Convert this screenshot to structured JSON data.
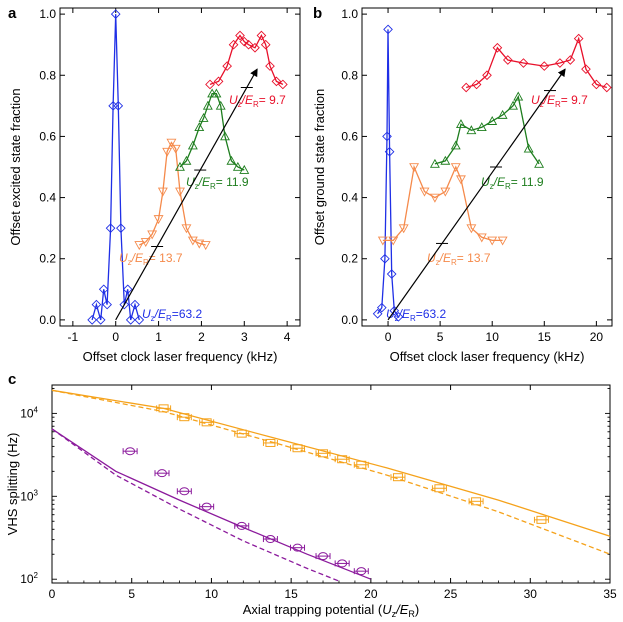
{
  "chart_data": [
    {
      "panel": "a",
      "type": "line",
      "ylabel": "Offset excited state fraction",
      "xlabel": "Offset clock laser frequency (kHz)",
      "xlim": [
        -1.3,
        4.3
      ],
      "ylim": [
        -0.02,
        1.02
      ],
      "xticks": [
        "-1",
        "0",
        "1",
        "2",
        "3",
        "4"
      ],
      "yticks": [
        "0.0",
        "0.2",
        "0.4",
        "0.6",
        "0.8",
        "1.0"
      ],
      "arrow": {
        "from": [
          0.0,
          0.0
        ],
        "to": [
          3.3,
          0.82
        ]
      },
      "series": [
        {
          "name": "U_z/E_R=63.2",
          "value": "63.2",
          "color": "#1f2fe6",
          "marker": "diamond",
          "offset": 0.0,
          "curve": {
            "x": [
              -0.55,
              -0.45,
              -0.35,
              -0.28,
              -0.2,
              -0.12,
              -0.06,
              0.0,
              0.06,
              0.12,
              0.2,
              0.28,
              0.35,
              0.45,
              0.55
            ],
            "y": [
              0.0,
              0.05,
              0.0,
              0.1,
              0.05,
              0.3,
              0.7,
              1.0,
              0.7,
              0.3,
              0.05,
              0.1,
              0.0,
              0.05,
              0.0
            ]
          }
        },
        {
          "name": "U_z/E_R=13.7",
          "value": "13.7",
          "color": "#f58a4b",
          "marker": "triangle-down",
          "offset": 0.24,
          "curve": {
            "x": [
              0.55,
              0.7,
              0.85,
              1.0,
              1.1,
              1.2,
              1.3,
              1.4,
              1.5,
              1.65,
              1.8,
              1.95,
              2.1
            ],
            "y": [
              0.245,
              0.255,
              0.28,
              0.33,
              0.42,
              0.55,
              0.58,
              0.56,
              0.42,
              0.3,
              0.26,
              0.25,
              0.245
            ]
          }
        },
        {
          "name": "U_z/E_R=11.9",
          "value": "11.9",
          "color": "#1d7d1d",
          "marker": "triangle-up",
          "offset": 0.49,
          "curve": {
            "x": [
              1.5,
              1.65,
              1.8,
              1.95,
              2.05,
              2.15,
              2.25,
              2.35,
              2.45,
              2.55,
              2.7,
              2.85,
              3.0
            ],
            "y": [
              0.5,
              0.52,
              0.57,
              0.63,
              0.66,
              0.7,
              0.74,
              0.74,
              0.7,
              0.6,
              0.52,
              0.5,
              0.49
            ]
          }
        },
        {
          "name": "U_z/E_R=9.7",
          "value": "9.7",
          "color": "#e8102a",
          "marker": "diamond",
          "offset": 0.76,
          "curve": {
            "x": [
              2.2,
              2.4,
              2.6,
              2.75,
              2.9,
              3.0,
              3.1,
              3.25,
              3.4,
              3.5,
              3.6,
              3.75,
              3.9
            ],
            "y": [
              0.77,
              0.78,
              0.83,
              0.9,
              0.93,
              0.91,
              0.9,
              0.89,
              0.93,
              0.9,
              0.83,
              0.78,
              0.77
            ]
          }
        }
      ]
    },
    {
      "panel": "b",
      "type": "line",
      "ylabel": "Offset ground state fraction",
      "xlabel": "Offset clock laser frequency (kHz)",
      "xlim": [
        -2.5,
        21.5
      ],
      "ylim": [
        -0.02,
        1.02
      ],
      "xticks": [
        "0",
        "5",
        "10",
        "15",
        "20"
      ],
      "yticks": [
        "0.0",
        "0.2",
        "0.4",
        "0.6",
        "0.8",
        "1.0"
      ],
      "arrow": {
        "from": [
          0.0,
          0.0
        ],
        "to": [
          17.0,
          0.82
        ]
      },
      "series": [
        {
          "name": "U_z/E_R=63.2",
          "value": "63.2",
          "color": "#1f2fe6",
          "marker": "diamond",
          "offset": 0.0,
          "curve": {
            "x": [
              -1.0,
              -0.6,
              -0.3,
              -0.1,
              0.0,
              0.15,
              0.35,
              0.6,
              1.0
            ],
            "y": [
              0.02,
              0.04,
              0.2,
              0.6,
              0.95,
              0.55,
              0.15,
              0.03,
              0.01
            ]
          }
        },
        {
          "name": "U_z/E_R=13.7",
          "value": "13.7",
          "color": "#f58a4b",
          "marker": "triangle-down",
          "offset": 0.25,
          "curve": {
            "x": [
              -0.5,
              0.5,
              1.5,
              2.5,
              3.5,
              4.5,
              5.5,
              6.5,
              7.0,
              8.0,
              9.0,
              10.0,
              11.0
            ],
            "y": [
              0.26,
              0.26,
              0.3,
              0.5,
              0.42,
              0.4,
              0.42,
              0.5,
              0.46,
              0.3,
              0.27,
              0.26,
              0.26
            ]
          }
        },
        {
          "name": "U_z/E_R=11.9",
          "value": "11.9",
          "color": "#1d7d1d",
          "marker": "triangle-up",
          "offset": 0.5,
          "curve": {
            "x": [
              4.5,
              5.5,
              6.5,
              7.0,
              8.0,
              9.0,
              10.0,
              11.0,
              12.0,
              12.5,
              13.5,
              14.5
            ],
            "y": [
              0.51,
              0.52,
              0.57,
              0.64,
              0.62,
              0.63,
              0.65,
              0.67,
              0.7,
              0.73,
              0.56,
              0.51
            ]
          }
        },
        {
          "name": "U_z/E_R=9.7",
          "value": "9.7",
          "color": "#e8102a",
          "marker": "diamond",
          "offset": 0.75,
          "curve": {
            "x": [
              7.5,
              8.5,
              9.5,
              10.5,
              11.5,
              13.0,
              15.0,
              16.5,
              17.5,
              18.3,
              19.0,
              20.0,
              21.0
            ],
            "y": [
              0.76,
              0.77,
              0.8,
              0.89,
              0.85,
              0.84,
              0.83,
              0.84,
              0.85,
              0.92,
              0.82,
              0.77,
              0.76
            ]
          }
        }
      ]
    },
    {
      "panel": "c",
      "type": "scatter",
      "xlabel": "Axial trapping potential (U_z/E_R)",
      "ylabel": "VHS splitting (Hz)",
      "xlim": [
        0,
        35
      ],
      "ylim": [
        90,
        22000
      ],
      "yscale": "log",
      "xticks": [
        "0",
        "5",
        "10",
        "15",
        "20",
        "25",
        "30",
        "35"
      ],
      "yticks": [
        {
          "value": 100,
          "label": "10",
          "exp": "2"
        },
        {
          "value": 1000,
          "label": "10",
          "exp": "3"
        },
        {
          "value": 10000,
          "label": "10",
          "exp": "4"
        }
      ],
      "series": [
        {
          "name": "orange data",
          "color": "#f5a21b",
          "marker": "square",
          "x": [
            7.0,
            8.3,
            9.7,
            11.9,
            13.7,
            15.4,
            17.0,
            18.2,
            19.4,
            21.7,
            24.3,
            26.6,
            30.7
          ],
          "y": [
            11500,
            9000,
            7800,
            5700,
            4400,
            3800,
            3300,
            2800,
            2400,
            1700,
            1250,
            870,
            520
          ]
        },
        {
          "name": "orange theory (solid)",
          "color": "#f5a21b",
          "style": "solid",
          "x": [
            0,
            7,
            14,
            21,
            28,
            35
          ],
          "y": [
            19000,
            11500,
            5000,
            2200,
            900,
            330
          ]
        },
        {
          "name": "orange theory (dashed)",
          "color": "#f5a21b",
          "style": "dashed",
          "x": [
            0,
            7,
            14,
            21,
            28,
            35
          ],
          "y": [
            19000,
            10500,
            4400,
            1800,
            650,
            200
          ]
        },
        {
          "name": "purple data",
          "color": "#8b1a9c",
          "marker": "circle",
          "x": [
            4.9,
            6.9,
            8.3,
            9.7,
            11.9,
            13.7,
            15.4,
            17.0,
            18.2,
            19.4
          ],
          "y": [
            3500,
            1900,
            1150,
            750,
            440,
            305,
            240,
            190,
            155,
            125
          ]
        },
        {
          "name": "purple theory (solid)",
          "color": "#8b1a9c",
          "style": "solid",
          "x": [
            0,
            4,
            8,
            12,
            16,
            20
          ],
          "y": [
            6500,
            2000,
            900,
            420,
            200,
            100
          ]
        },
        {
          "name": "purple theory (dashed)",
          "color": "#8b1a9c",
          "style": "dashed",
          "x": [
            0,
            4,
            8,
            12,
            16,
            18
          ],
          "y": [
            6500,
            1800,
            700,
            290,
            135,
            95
          ]
        }
      ]
    }
  ],
  "labels": {
    "panel_a": "a",
    "panel_b": "b",
    "panel_c": "c",
    "ratio_prefix_U": "U",
    "ratio_sub_z": "z",
    "ratio_slash_E": "/E",
    "ratio_sub_R": "R",
    "ratio_eq": "=",
    "ratio_eq_spaced": "= ",
    "a_ylabel": "Offset excited state fraction",
    "b_ylabel": "Offset ground state fraction",
    "ab_xlabel": "Offset clock laser frequency (kHz)",
    "c_ylabel": "VHS splitting (Hz)",
    "c_xlabel_pre": "Axial trapping potential (",
    "c_xlabel_post": ")"
  }
}
